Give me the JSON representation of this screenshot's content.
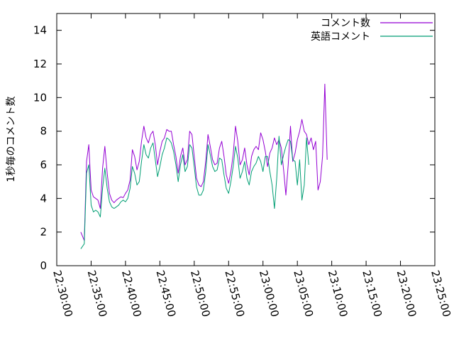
{
  "chart_data": {
    "type": "line",
    "ylabel": "1秒毎のコメント数",
    "xlabel": "",
    "ylim": [
      0,
      15
    ],
    "xlim": [
      "22:30:00",
      "23:25:00"
    ],
    "grid": false,
    "legend_position": "top-right",
    "y_ticks": [
      "0",
      "2",
      "4",
      "6",
      "8",
      "10",
      "12",
      "14"
    ],
    "x_ticks": [
      "22:30:00",
      "22:35:00",
      "22:40:00",
      "22:45:00",
      "22:50:00",
      "22:55:00",
      "23:00:00",
      "23:05:00",
      "23:10:00",
      "23:15:00",
      "23:20:00",
      "23:25:00"
    ],
    "series": [
      {
        "name": "コメント数",
        "color": "#9400d3",
        "points": [
          [
            "22:33:30",
            2.0
          ],
          [
            "22:34:00",
            1.5
          ],
          [
            "22:34:20",
            6.2
          ],
          [
            "22:34:40",
            7.2
          ],
          [
            "22:35:00",
            4.5
          ],
          [
            "22:35:20",
            4.1
          ],
          [
            "22:35:40",
            4.0
          ],
          [
            "22:36:00",
            3.9
          ],
          [
            "22:36:20",
            3.4
          ],
          [
            "22:36:40",
            5.8
          ],
          [
            "22:37:00",
            7.1
          ],
          [
            "22:37:20",
            5.5
          ],
          [
            "22:37:40",
            4.3
          ],
          [
            "22:38:00",
            3.9
          ],
          [
            "22:38:20",
            3.75
          ],
          [
            "22:38:40",
            3.9
          ],
          [
            "22:39:00",
            4.0
          ],
          [
            "22:39:20",
            4.1
          ],
          [
            "22:39:40",
            4.05
          ],
          [
            "22:40:00",
            4.3
          ],
          [
            "22:40:20",
            4.5
          ],
          [
            "22:40:40",
            5.1
          ],
          [
            "22:41:00",
            6.9
          ],
          [
            "22:41:20",
            6.5
          ],
          [
            "22:41:40",
            5.7
          ],
          [
            "22:42:00",
            6.2
          ],
          [
            "22:42:20",
            7.4
          ],
          [
            "22:42:40",
            8.3
          ],
          [
            "22:43:00",
            7.6
          ],
          [
            "22:43:20",
            7.3
          ],
          [
            "22:43:40",
            7.8
          ],
          [
            "22:44:00",
            8.0
          ],
          [
            "22:44:20",
            7.2
          ],
          [
            "22:44:40",
            6.0
          ],
          [
            "22:45:00",
            6.8
          ],
          [
            "22:45:20",
            7.4
          ],
          [
            "22:45:40",
            7.6
          ],
          [
            "22:46:00",
            8.1
          ],
          [
            "22:46:20",
            8.0
          ],
          [
            "22:46:40",
            8.0
          ],
          [
            "22:47:00",
            7.2
          ],
          [
            "22:47:20",
            6.5
          ],
          [
            "22:47:40",
            5.5
          ],
          [
            "22:48:00",
            6.5
          ],
          [
            "22:48:20",
            7.0
          ],
          [
            "22:48:40",
            6.0
          ],
          [
            "22:49:00",
            6.3
          ],
          [
            "22:49:20",
            8.0
          ],
          [
            "22:49:40",
            7.8
          ],
          [
            "22:50:00",
            6.5
          ],
          [
            "22:50:20",
            5.2
          ],
          [
            "22:50:40",
            4.8
          ],
          [
            "22:51:00",
            4.7
          ],
          [
            "22:51:20",
            5.0
          ],
          [
            "22:51:40",
            6.2
          ],
          [
            "22:52:00",
            7.8
          ],
          [
            "22:52:20",
            7.1
          ],
          [
            "22:52:40",
            6.3
          ],
          [
            "22:53:00",
            6.0
          ],
          [
            "22:53:20",
            6.1
          ],
          [
            "22:53:40",
            7.0
          ],
          [
            "22:54:00",
            7.4
          ],
          [
            "22:54:20",
            6.5
          ],
          [
            "22:54:40",
            5.4
          ],
          [
            "22:55:00",
            4.9
          ],
          [
            "22:55:20",
            5.6
          ],
          [
            "22:55:40",
            6.6
          ],
          [
            "22:56:00",
            8.3
          ],
          [
            "22:56:20",
            7.4
          ],
          [
            "22:56:40",
            6.0
          ],
          [
            "22:57:00",
            6.3
          ],
          [
            "22:57:20",
            7.0
          ],
          [
            "22:57:40",
            6.0
          ],
          [
            "22:58:00",
            5.4
          ],
          [
            "22:58:20",
            6.5
          ],
          [
            "22:58:40",
            6.9
          ],
          [
            "22:59:00",
            7.1
          ],
          [
            "22:59:20",
            6.9
          ],
          [
            "22:59:40",
            7.9
          ],
          [
            "23:00:00",
            7.5
          ],
          [
            "23:00:20",
            6.8
          ],
          [
            "23:00:40",
            5.9
          ],
          [
            "23:01:00",
            6.7
          ],
          [
            "23:01:20",
            7.0
          ],
          [
            "23:01:40",
            7.6
          ],
          [
            "23:02:00",
            7.2
          ],
          [
            "23:02:20",
            7.5
          ],
          [
            "23:02:40",
            7.0
          ],
          [
            "23:03:00",
            5.7
          ],
          [
            "23:03:20",
            4.2
          ],
          [
            "23:03:40",
            6.0
          ],
          [
            "23:04:00",
            8.3
          ],
          [
            "23:04:20",
            6.2
          ],
          [
            "23:04:40",
            6.7
          ],
          [
            "23:05:00",
            7.5
          ],
          [
            "23:05:20",
            8.0
          ],
          [
            "23:05:40",
            8.7
          ],
          [
            "23:06:00",
            8.0
          ],
          [
            "23:06:20",
            7.8
          ],
          [
            "23:06:40",
            7.2
          ],
          [
            "23:07:00",
            7.6
          ],
          [
            "23:07:20",
            6.9
          ],
          [
            "23:07:40",
            7.4
          ],
          [
            "23:08:00",
            4.5
          ],
          [
            "23:08:20",
            5.0
          ],
          [
            "23:08:40",
            6.5
          ],
          [
            "23:09:00",
            10.8
          ],
          [
            "23:09:20",
            6.3
          ]
        ]
      },
      {
        "name": "英語コメント",
        "color": "#009e73",
        "points": [
          [
            "22:33:30",
            1.0
          ],
          [
            "22:34:00",
            1.3
          ],
          [
            "22:34:20",
            5.5
          ],
          [
            "22:34:40",
            6.0
          ],
          [
            "22:35:00",
            3.6
          ],
          [
            "22:35:20",
            3.2
          ],
          [
            "22:35:40",
            3.3
          ],
          [
            "22:36:00",
            3.2
          ],
          [
            "22:36:20",
            2.9
          ],
          [
            "22:36:40",
            4.6
          ],
          [
            "22:37:00",
            5.8
          ],
          [
            "22:37:20",
            4.6
          ],
          [
            "22:37:40",
            3.8
          ],
          [
            "22:38:00",
            3.5
          ],
          [
            "22:38:20",
            3.4
          ],
          [
            "22:38:40",
            3.5
          ],
          [
            "22:39:00",
            3.6
          ],
          [
            "22:39:20",
            3.8
          ],
          [
            "22:39:40",
            3.9
          ],
          [
            "22:40:00",
            3.8
          ],
          [
            "22:40:20",
            4.0
          ],
          [
            "22:40:40",
            4.6
          ],
          [
            "22:41:00",
            5.9
          ],
          [
            "22:41:20",
            5.5
          ],
          [
            "22:41:40",
            4.8
          ],
          [
            "22:42:00",
            5.0
          ],
          [
            "22:42:20",
            6.2
          ],
          [
            "22:42:40",
            7.2
          ],
          [
            "22:43:00",
            6.6
          ],
          [
            "22:43:20",
            6.4
          ],
          [
            "22:43:40",
            7.0
          ],
          [
            "22:44:00",
            7.3
          ],
          [
            "22:44:20",
            6.3
          ],
          [
            "22:44:40",
            5.3
          ],
          [
            "22:45:00",
            5.9
          ],
          [
            "22:45:20",
            6.6
          ],
          [
            "22:45:40",
            7.0
          ],
          [
            "22:46:00",
            7.6
          ],
          [
            "22:46:20",
            7.5
          ],
          [
            "22:46:40",
            7.3
          ],
          [
            "22:47:00",
            6.8
          ],
          [
            "22:47:20",
            6.0
          ],
          [
            "22:47:40",
            5.0
          ],
          [
            "22:48:00",
            6.0
          ],
          [
            "22:48:20",
            6.6
          ],
          [
            "22:48:40",
            5.6
          ],
          [
            "22:49:00",
            5.9
          ],
          [
            "22:49:20",
            7.2
          ],
          [
            "22:49:40",
            7.0
          ],
          [
            "22:50:00",
            5.9
          ],
          [
            "22:50:20",
            4.7
          ],
          [
            "22:50:40",
            4.2
          ],
          [
            "22:51:00",
            4.2
          ],
          [
            "22:51:20",
            4.5
          ],
          [
            "22:51:40",
            5.6
          ],
          [
            "22:52:00",
            7.2
          ],
          [
            "22:52:20",
            6.6
          ],
          [
            "22:52:40",
            5.9
          ],
          [
            "22:53:00",
            5.6
          ],
          [
            "22:53:20",
            5.7
          ],
          [
            "22:53:40",
            6.4
          ],
          [
            "22:54:00",
            6.3
          ],
          [
            "22:54:20",
            5.4
          ],
          [
            "22:54:40",
            4.6
          ],
          [
            "22:55:00",
            4.3
          ],
          [
            "22:55:20",
            5.0
          ],
          [
            "22:55:40",
            5.9
          ],
          [
            "22:56:00",
            7.1
          ],
          [
            "22:56:20",
            6.4
          ],
          [
            "22:56:40",
            5.2
          ],
          [
            "22:57:00",
            5.6
          ],
          [
            "22:57:20",
            6.2
          ],
          [
            "22:57:40",
            5.2
          ],
          [
            "22:58:00",
            4.8
          ],
          [
            "22:58:20",
            5.6
          ],
          [
            "22:58:40",
            5.9
          ],
          [
            "22:59:00",
            6.1
          ],
          [
            "22:59:20",
            6.5
          ],
          [
            "22:59:40",
            6.2
          ],
          [
            "23:00:00",
            5.6
          ],
          [
            "23:00:20",
            6.5
          ],
          [
            "23:00:40",
            6.5
          ],
          [
            "23:01:00",
            5.6
          ],
          [
            "23:01:20",
            4.8
          ],
          [
            "23:01:40",
            3.4
          ],
          [
            "23:02:00",
            5.2
          ],
          [
            "23:02:20",
            7.7
          ],
          [
            "23:02:40",
            6.0
          ],
          [
            "23:03:00",
            6.6
          ],
          [
            "23:03:20",
            7.1
          ],
          [
            "23:03:40",
            7.5
          ],
          [
            "23:04:00",
            7.4
          ],
          [
            "23:04:20",
            6.3
          ],
          [
            "23:04:40",
            6.2
          ],
          [
            "23:05:00",
            4.8
          ],
          [
            "23:05:20",
            6.3
          ],
          [
            "23:05:40",
            3.9
          ],
          [
            "23:06:00",
            4.8
          ],
          [
            "23:06:20",
            7.6
          ],
          [
            "23:06:40",
            6.0
          ]
        ]
      }
    ]
  }
}
